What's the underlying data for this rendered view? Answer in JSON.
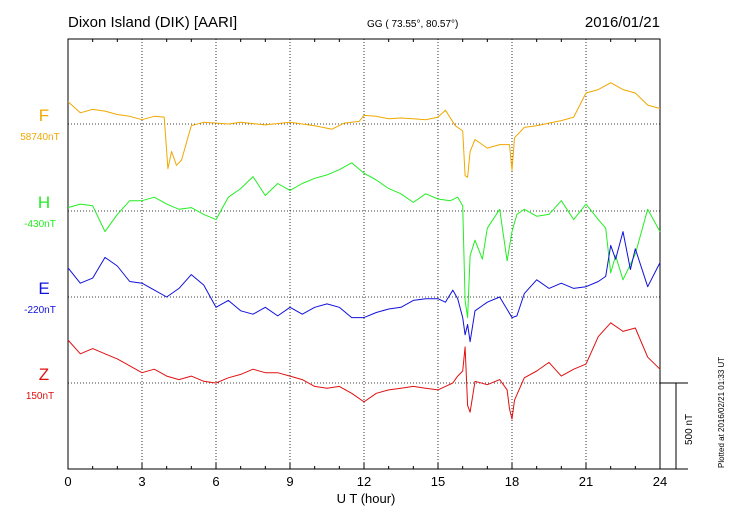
{
  "header": {
    "station": "Dixon Island (DIK)  [AARI]",
    "coords": "GG ( 73.55°,  80.57°)",
    "date": "2016/01/21"
  },
  "side_note": "Plotted at 2016/02/21 01:33 UT",
  "scale_label": "500 nT",
  "colors": {
    "F": "#f0a800",
    "H": "#22ee22",
    "E": "#1010dd",
    "Z": "#e01010",
    "grid": "#000000"
  },
  "chart_data": {
    "type": "line",
    "xlabel": "U T (hour)",
    "xlim": [
      0,
      24
    ],
    "xticks": [
      "0",
      "3",
      "6",
      "9",
      "12",
      "15",
      "18",
      "21",
      "24"
    ],
    "scale_bar_nT": 500,
    "series": [
      {
        "name": "F",
        "baseline": "58740nT",
        "baseline_nT": 58740,
        "color": "#f0a800",
        "x": [
          0,
          0.5,
          1,
          1.5,
          2,
          2.5,
          3,
          3.5,
          3.9,
          4.05,
          4.2,
          4.4,
          4.6,
          5,
          5.5,
          6,
          6.5,
          7,
          8,
          9,
          10,
          10.7,
          11.2,
          11.8,
          12,
          12.5,
          13,
          13.5,
          14,
          14.5,
          15,
          15.3,
          15.7,
          16,
          16.1,
          16.2,
          16.3,
          16.5,
          17,
          17.5,
          17.9,
          18,
          18.1,
          18.5,
          19,
          19.5,
          20,
          20.5,
          21,
          21.5,
          22,
          22.5,
          23,
          23.5,
          24
        ],
        "y": [
          130,
          65,
          85,
          75,
          55,
          45,
          25,
          45,
          40,
          -260,
          -160,
          -240,
          -210,
          -10,
          10,
          5,
          0,
          10,
          -5,
          10,
          -10,
          -30,
          5,
          15,
          50,
          45,
          30,
          35,
          30,
          25,
          40,
          80,
          -10,
          -40,
          -300,
          -310,
          -160,
          -90,
          -140,
          -120,
          -120,
          -270,
          -80,
          -20,
          -10,
          5,
          20,
          40,
          180,
          200,
          240,
          200,
          180,
          110,
          90
        ]
      },
      {
        "name": "H",
        "baseline": "-430nT",
        "baseline_nT": -430,
        "color": "#22ee22",
        "x": [
          0,
          0.5,
          1,
          1.5,
          2,
          2.5,
          3,
          3.5,
          4,
          4.5,
          5,
          5.5,
          6,
          6.5,
          7,
          7.5,
          8,
          8.5,
          9,
          9.5,
          10,
          10.5,
          11,
          11.5,
          12,
          12.5,
          13,
          13.5,
          14,
          14.5,
          15,
          15.5,
          15.8,
          16,
          16.1,
          16.2,
          16.3,
          16.5,
          16.8,
          17,
          17.5,
          17.8,
          18,
          18.2,
          18.5,
          19,
          19.5,
          20,
          20.5,
          21,
          21.5,
          21.8,
          22,
          22.2,
          22.5,
          23,
          23.5,
          24
        ],
        "y": [
          20,
          40,
          30,
          -120,
          -20,
          60,
          60,
          80,
          40,
          10,
          20,
          -20,
          -50,
          80,
          130,
          200,
          90,
          160,
          120,
          160,
          190,
          210,
          240,
          280,
          220,
          180,
          130,
          100,
          50,
          100,
          70,
          60,
          80,
          30,
          -520,
          -620,
          -260,
          -170,
          -280,
          -100,
          10,
          -290,
          -120,
          -20,
          10,
          -30,
          -20,
          60,
          -50,
          40,
          -50,
          -100,
          -360,
          -260,
          -400,
          -250,
          10,
          -120
        ]
      },
      {
        "name": "E",
        "baseline": "-220nT",
        "baseline_nT": -220,
        "color": "#1010dd",
        "x": [
          0,
          0.5,
          1,
          1.5,
          2,
          2.5,
          3,
          3.5,
          4,
          4.5,
          5,
          5.5,
          6,
          6.5,
          7,
          7.5,
          8,
          8.5,
          9,
          9.5,
          10,
          10.5,
          11,
          11.5,
          12,
          12.5,
          13,
          13.5,
          14,
          14.5,
          15,
          15.3,
          15.6,
          15.8,
          16,
          16.1,
          16.2,
          16.3,
          16.5,
          16.8,
          17,
          17.5,
          18,
          18.2,
          18.5,
          19,
          19.5,
          20,
          20.5,
          21,
          21.5,
          21.8,
          22,
          22.2,
          22.5,
          22.8,
          23,
          23.5,
          24
        ],
        "y": [
          170,
          80,
          110,
          230,
          180,
          90,
          80,
          40,
          0,
          50,
          130,
          70,
          -60,
          -20,
          -80,
          -100,
          -60,
          -110,
          -60,
          -100,
          -60,
          -40,
          -60,
          -120,
          -120,
          -90,
          -70,
          -60,
          -20,
          -10,
          -10,
          -30,
          40,
          -10,
          -120,
          -220,
          -160,
          -260,
          -80,
          -50,
          -30,
          0,
          -120,
          -110,
          20,
          100,
          50,
          80,
          50,
          60,
          90,
          120,
          300,
          220,
          380,
          160,
          280,
          60,
          200
        ]
      },
      {
        "name": "Z",
        "baseline": "150nT",
        "baseline_nT": 150,
        "color": "#e01010",
        "x": [
          0,
          0.5,
          1,
          1.5,
          2,
          2.5,
          3,
          3.5,
          4,
          4.5,
          5,
          5.5,
          6,
          6.5,
          7,
          7.5,
          8,
          8.5,
          9,
          9.5,
          10,
          10.5,
          11,
          11.5,
          12,
          12.5,
          13,
          13.5,
          14,
          14.5,
          15,
          15.3,
          15.6,
          15.8,
          16,
          16.1,
          16.2,
          16.3,
          16.5,
          17,
          17.5,
          17.8,
          17.9,
          18,
          18.1,
          18.5,
          19,
          19.5,
          20,
          20.5,
          21,
          21.5,
          22,
          22.5,
          23,
          23.5,
          24
        ],
        "y": [
          250,
          170,
          200,
          170,
          140,
          100,
          60,
          80,
          40,
          20,
          40,
          10,
          0,
          30,
          50,
          80,
          60,
          60,
          40,
          20,
          -20,
          -30,
          -20,
          -60,
          -110,
          -60,
          -40,
          -30,
          -20,
          -30,
          -40,
          -20,
          0,
          40,
          70,
          210,
          -130,
          -170,
          10,
          -10,
          20,
          -40,
          -150,
          -210,
          -100,
          30,
          70,
          120,
          40,
          80,
          110,
          270,
          350,
          300,
          320,
          150,
          80
        ]
      }
    ]
  }
}
